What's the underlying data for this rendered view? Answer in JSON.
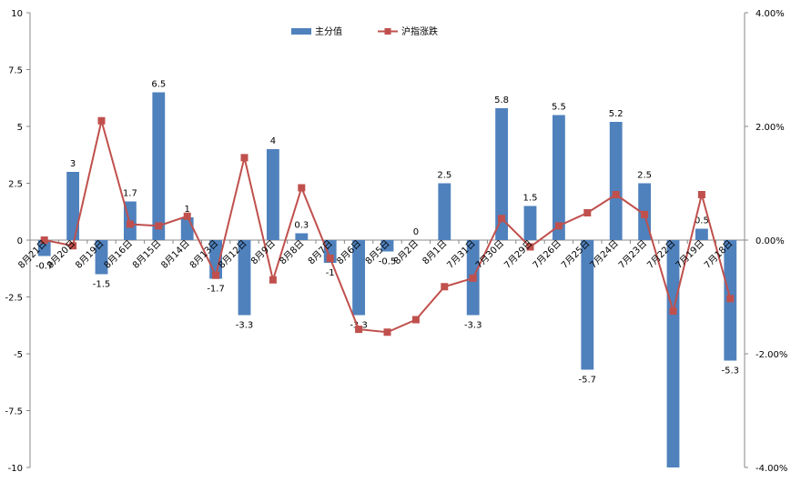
{
  "chart_data": {
    "type": "bar+line",
    "categories": [
      "8月21日",
      "8月20日",
      "8月19日",
      "8月16日",
      "8月15日",
      "8月14日",
      "8月13日",
      "8月12日",
      "8月9日",
      "8月8日",
      "8月7日",
      "8月6日",
      "8月5日",
      "8月2日",
      "8月1日",
      "7月31日",
      "7月30日",
      "7月29日",
      "7月26日",
      "7月25日",
      "7月24日",
      "7月23日",
      "7月22日",
      "7月19日",
      "7月18日"
    ],
    "series": [
      {
        "name": "主分值",
        "type": "bar",
        "axis": "left",
        "color": "#4f81bd",
        "values": [
          -0.7,
          3,
          -1.5,
          1.7,
          6.5,
          1,
          -1.7,
          -3.3,
          4,
          0.3,
          -1,
          -3.3,
          -0.5,
          0,
          2.5,
          -3.3,
          5.8,
          1.5,
          5.5,
          -5.7,
          5.2,
          2.5,
          -10,
          0.5,
          -5.3
        ],
        "labels": [
          "-0.7",
          "3",
          "-1.5",
          "1.7",
          "6.5",
          "1",
          "-1.7",
          "-3.3",
          "4",
          "0.3",
          "-1",
          "-3.3",
          "-0.5",
          "0",
          "2.5",
          "-3.3",
          "5.8",
          "1.5",
          "5.5",
          "-5.7",
          "5.2",
          "2.5",
          "",
          "0.5",
          "-5.3"
        ]
      },
      {
        "name": "沪指涨跌",
        "type": "line",
        "axis": "right",
        "color": "#c0504d",
        "values": [
          0.0,
          -0.1,
          2.1,
          0.28,
          0.25,
          0.42,
          -0.62,
          1.45,
          -0.7,
          0.92,
          -0.32,
          -1.57,
          -1.62,
          -1.4,
          -0.82,
          -0.67,
          0.38,
          -0.12,
          0.25,
          0.48,
          0.8,
          0.45,
          -1.25,
          0.8,
          -1.03
        ]
      }
    ],
    "y_left": {
      "lim": [
        -10,
        10
      ],
      "ticks": [
        -10,
        -7.5,
        -5,
        -2.5,
        0,
        2.5,
        5,
        7.5,
        10
      ],
      "tick_labels": [
        "-10",
        "-7.5",
        "-5",
        "-2.5",
        "0",
        "2.5",
        "5",
        "7.5",
        "10"
      ]
    },
    "y_right": {
      "lim": [
        -4,
        4
      ],
      "ticks": [
        -4,
        -2,
        0,
        2,
        4
      ],
      "tick_labels": [
        "-4.00%",
        "-2.00%",
        "0.00%",
        "2.00%",
        "4.00%"
      ]
    },
    "legend": {
      "placement": "top-center",
      "items": [
        "主分值",
        "沪指涨跌"
      ]
    },
    "grid": false
  }
}
